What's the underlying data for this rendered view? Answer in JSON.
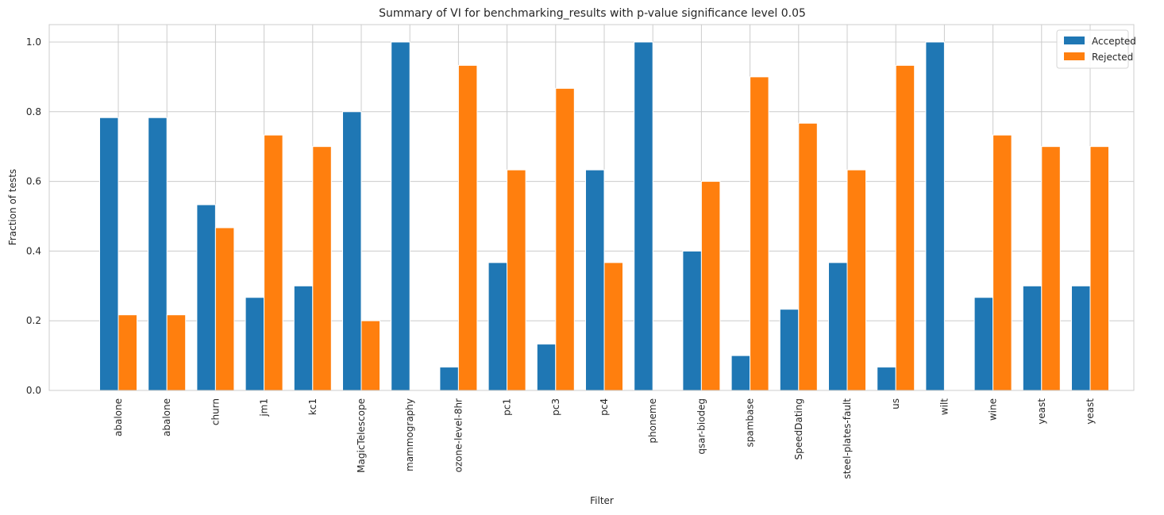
{
  "chart_data": {
    "type": "bar",
    "title": "Summary of VI for benchmarking_results with p-value significance level 0.05",
    "xlabel": "Filter",
    "ylabel": "Fraction of tests",
    "ylim": [
      0,
      1.05
    ],
    "yticks": [
      "0.0",
      "0.2",
      "0.4",
      "0.6",
      "0.8",
      "1.0"
    ],
    "grid": true,
    "legend_position": "top-right",
    "categories": [
      "abalone",
      "abalone",
      "churn",
      "jm1",
      "kc1",
      "MagicTelescope",
      "mammography",
      "ozone-level-8hr",
      "pc1",
      "pc3",
      "pc4",
      "phoneme",
      "qsar-biodeg",
      "spambase",
      "SpeedDating",
      "steel-plates-fault",
      "us",
      "wilt",
      "wine",
      "yeast",
      "yeast"
    ],
    "series": [
      {
        "name": "Accepted",
        "color": "#1f77b4",
        "values": [
          0.783,
          0.783,
          0.533,
          0.267,
          0.3,
          0.8,
          1.0,
          0.067,
          0.367,
          0.133,
          0.633,
          1.0,
          0.4,
          0.1,
          0.233,
          0.367,
          0.067,
          1.0,
          0.267,
          0.3,
          0.3
        ]
      },
      {
        "name": "Rejected",
        "color": "#ff7f0e",
        "values": [
          0.217,
          0.217,
          0.467,
          0.733,
          0.7,
          0.2,
          0.0,
          0.933,
          0.633,
          0.867,
          0.367,
          0.0,
          0.6,
          0.9,
          0.767,
          0.633,
          0.933,
          0.0,
          0.733,
          0.7,
          0.7
        ]
      }
    ]
  }
}
